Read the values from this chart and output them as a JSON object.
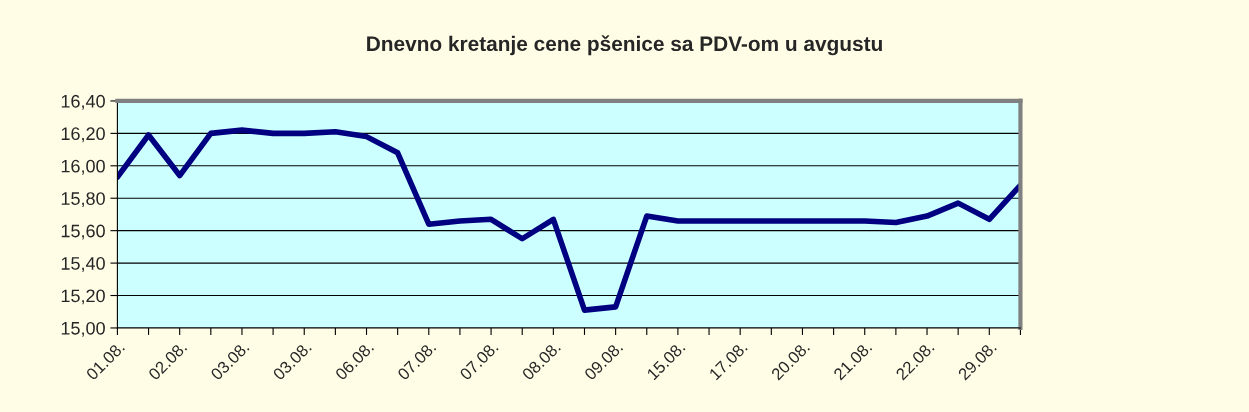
{
  "chart_data": {
    "type": "line",
    "title": "Dnevno kretanje cene pšenice sa PDV-om u avgustu",
    "categories": [
      "01.08.",
      null,
      "02.08.",
      null,
      "03.08.",
      null,
      "03.08.",
      null,
      "06.08.",
      null,
      "07.08.",
      null,
      "07.08.",
      null,
      "08.08.",
      null,
      "09.08.",
      null,
      "15.08.",
      null,
      "17.08.",
      null,
      "20.08.",
      null,
      "21.08.",
      null,
      "22.08.",
      null,
      "29.08.",
      null
    ],
    "series": [
      {
        "color": "#000080",
        "values": [
          15.93,
          16.19,
          15.94,
          16.2,
          16.22,
          16.2,
          16.2,
          16.21,
          16.18,
          16.08,
          15.64,
          15.66,
          15.67,
          15.55,
          15.67,
          15.11,
          15.13,
          15.69,
          15.66,
          15.66,
          15.66,
          15.66,
          15.66,
          15.66,
          15.66,
          15.65,
          15.69,
          15.77,
          15.67,
          15.88
        ]
      }
    ],
    "ylim": [
      15.0,
      16.4
    ],
    "yticks": [
      {
        "value": 15.0,
        "label": "15,00"
      },
      {
        "value": 15.2,
        "label": "15,20"
      },
      {
        "value": 15.4,
        "label": "15,40"
      },
      {
        "value": 15.6,
        "label": "15,60"
      },
      {
        "value": 15.8,
        "label": "15,80"
      },
      {
        "value": 16.0,
        "label": "16,00"
      },
      {
        "value": 16.2,
        "label": "16,20"
      },
      {
        "value": 16.4,
        "label": "16,40"
      }
    ],
    "grid": "y",
    "legend": false,
    "marker": "none",
    "line_style": "solid"
  }
}
